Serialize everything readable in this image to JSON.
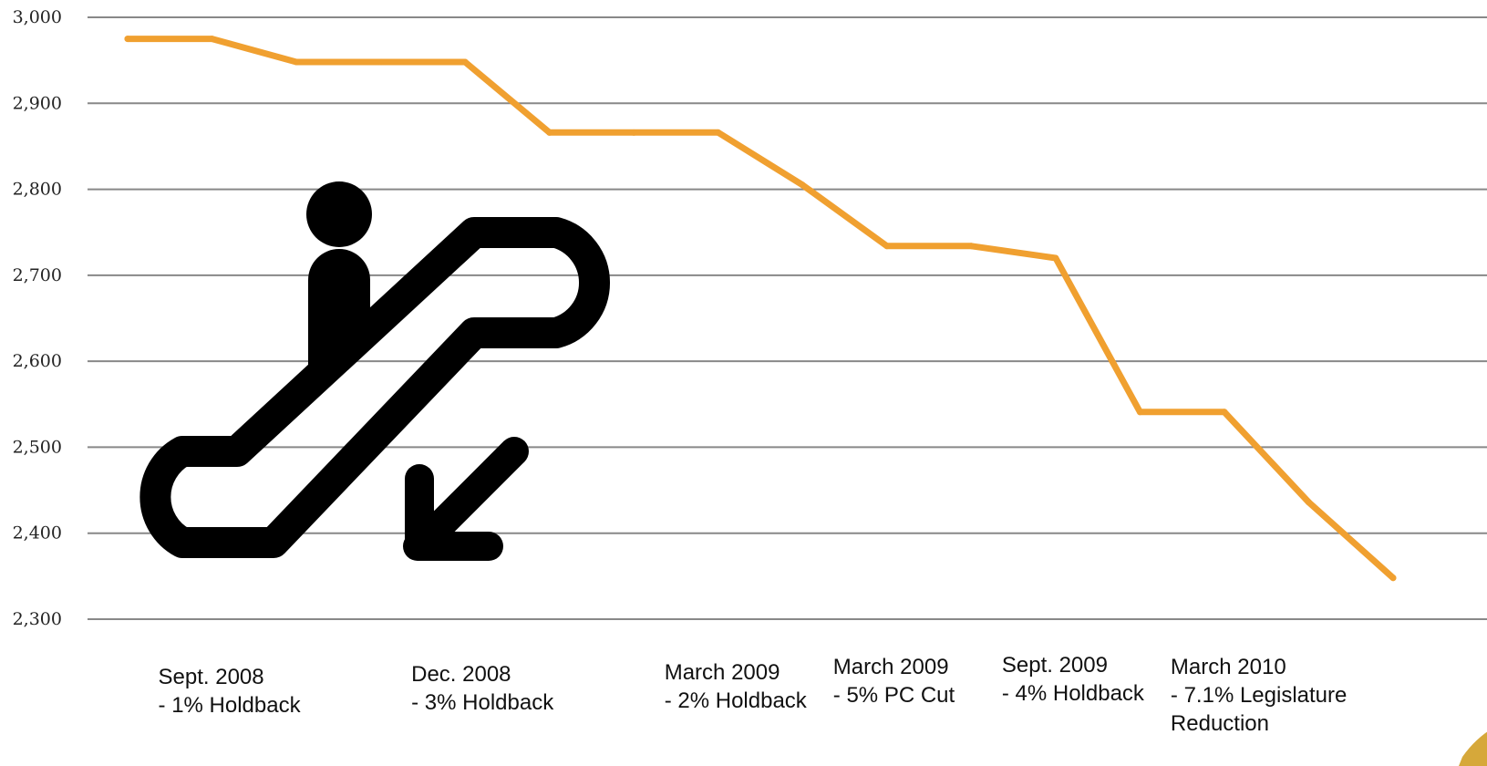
{
  "chart_data": {
    "type": "line",
    "title": "",
    "xlabel": "",
    "ylabel": "",
    "ylim": [
      2300,
      3000
    ],
    "yticks": [
      3000,
      2900,
      2800,
      2700,
      2600,
      2500,
      2400,
      2300
    ],
    "ytick_labels": [
      "3,000",
      "2,900",
      "2,800",
      "2,700",
      "2,600",
      "2,500",
      "2,400",
      "2,300"
    ],
    "grid": true,
    "series": [
      {
        "color": "#F0A030",
        "values": [
          2975,
          2975,
          2948,
          2948,
          2948,
          2866,
          2866,
          2866,
          2805,
          2734,
          2734,
          2720,
          2541,
          2541,
          2436,
          2348
        ]
      }
    ],
    "annotations": [
      {
        "after_point": 1,
        "lines": [
          "Sept. 2008",
          "- 1% Holdback"
        ]
      },
      {
        "after_point": 4,
        "lines": [
          "Dec. 2008",
          "- 3% Holdback"
        ]
      },
      {
        "after_point": 7,
        "lines": [
          "March 2009",
          "- 2% Holdback"
        ]
      },
      {
        "after_point": 9,
        "lines": [
          "March 2009",
          "- 5% PC Cut"
        ]
      },
      {
        "after_point": 11,
        "lines": [
          "Sept. 2009",
          "- 4% Holdback"
        ]
      },
      {
        "after_point": 13,
        "lines": [
          "March 2010",
          "- 7.1% Legislature",
          "Reduction"
        ]
      }
    ]
  },
  "decoration": {
    "icon": "escalator-down-icon",
    "icon_color": "#000000"
  }
}
